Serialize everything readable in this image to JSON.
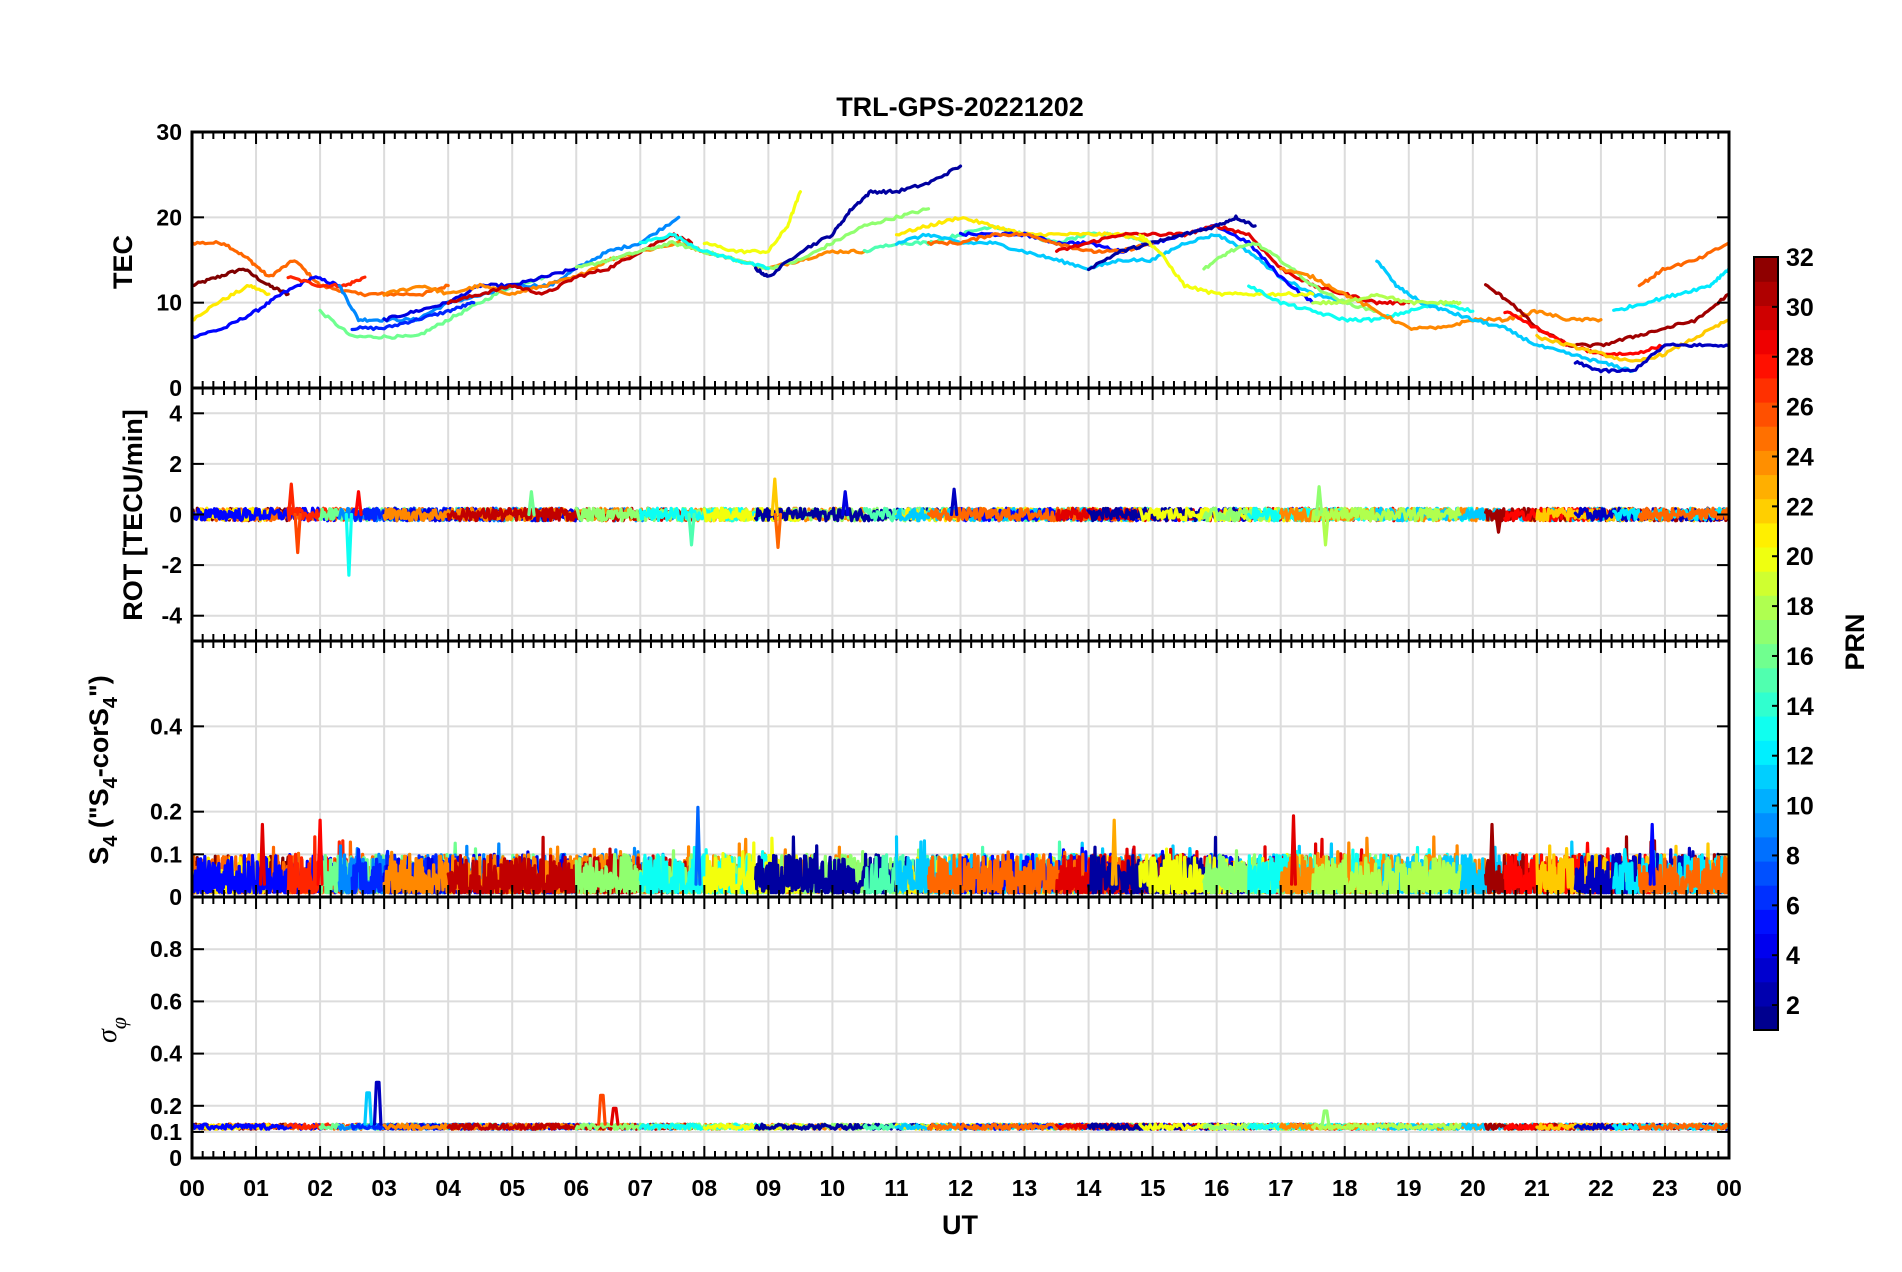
{
  "chart_data": {
    "type": "line",
    "title": "TRL-GPS-20221202",
    "xlabel": "UT",
    "x_range": [
      0,
      24
    ],
    "x_tick_values": [
      0,
      1,
      2,
      3,
      4,
      5,
      6,
      7,
      8,
      9,
      10,
      11,
      12,
      13,
      14,
      15,
      16,
      17,
      18,
      19,
      20,
      21,
      22,
      23,
      24
    ],
    "x_tick_labels": [
      "00",
      "01",
      "02",
      "03",
      "04",
      "05",
      "06",
      "07",
      "08",
      "09",
      "10",
      "11",
      "12",
      "13",
      "14",
      "15",
      "16",
      "17",
      "18",
      "19",
      "20",
      "21",
      "22",
      "23",
      "00"
    ],
    "colorbar": {
      "label": "PRN",
      "colormap": "jet",
      "range": [
        1,
        32
      ],
      "tick_values": [
        2,
        4,
        6,
        8,
        10,
        12,
        14,
        16,
        18,
        20,
        22,
        24,
        26,
        28,
        30,
        32
      ],
      "tick_labels": [
        "2",
        "4",
        "6",
        "8",
        "10",
        "12",
        "14",
        "16",
        "18",
        "20",
        "22",
        "24",
        "26",
        "28",
        "30",
        "32"
      ]
    },
    "panels": [
      {
        "id": "tec",
        "ylabel": "TEC",
        "ylim": [
          0,
          30
        ],
        "y_ticks": [
          0,
          10,
          20,
          30
        ],
        "y_tick_labels": [
          "0",
          "10",
          "20",
          "30"
        ],
        "series": [
          {
            "prn": 32,
            "x": [
              0.0,
              0.4,
              0.8,
              1.2,
              1.5
            ],
            "y": [
              12,
              13,
              14,
              12,
              11
            ]
          },
          {
            "prn": 25,
            "x": [
              0.0,
              0.5,
              0.9,
              1.2,
              1.6,
              2.0,
              2.6,
              3.0,
              3.6,
              4.0
            ],
            "y": [
              17,
              17,
              15,
              13,
              15,
              12,
              11,
              11,
              11,
              12
            ]
          },
          {
            "prn": 21,
            "x": [
              0.0,
              0.4,
              0.9,
              1.2
            ],
            "y": [
              8,
              10,
              12,
              11
            ]
          },
          {
            "prn": 5,
            "x": [
              0.0,
              0.5,
              1.0,
              1.4,
              1.9,
              2.3
            ],
            "y": [
              6,
              7,
              9,
              11,
              13,
              12
            ]
          },
          {
            "prn": 27,
            "x": [
              1.5,
              2.0,
              2.4,
              2.7
            ],
            "y": [
              13,
              12,
              12,
              13
            ]
          },
          {
            "prn": 16,
            "x": [
              2.0,
              2.5,
              3.0,
              3.5,
              4.0,
              4.5,
              5.0,
              5.5
            ],
            "y": [
              9,
              6,
              6,
              6,
              8,
              10,
              12,
              13
            ]
          },
          {
            "prn": 9,
            "x": [
              2.3,
              2.6,
              3.0,
              3.5,
              4.0,
              4.6,
              5.0,
              5.6,
              6.0,
              6.5,
              7.0,
              7.6
            ],
            "y": [
              12,
              8,
              8,
              8,
              10,
              11,
              12,
              12,
              14,
              16,
              17,
              20
            ]
          },
          {
            "prn": 6,
            "x": [
              2.5,
              3.0,
              3.5,
              4.0,
              4.4
            ],
            "y": [
              7,
              7,
              8,
              9,
              10
            ]
          },
          {
            "prn": 4,
            "x": [
              3.0,
              3.5,
              4.0,
              4.5,
              5.0,
              5.5,
              6.0
            ],
            "y": [
              8,
              9,
              10,
              12,
              12,
              13,
              14
            ]
          },
          {
            "prn": 24,
            "x": [
              3.0,
              3.6,
              4.0,
              4.5,
              5.0,
              5.5,
              6.0,
              6.5,
              7.0,
              7.6,
              8.0,
              8.5,
              9.0,
              9.5,
              10.0,
              10.5
            ],
            "y": [
              11,
              12,
              11,
              12,
              11,
              12,
              13,
              15,
              16,
              17,
              16,
              15,
              14,
              15,
              16,
              16
            ]
          },
          {
            "prn": 30,
            "x": [
              4.0,
              4.5,
              5.0,
              5.5,
              6.0,
              6.5,
              7.0,
              7.5,
              7.8
            ],
            "y": [
              10,
              11,
              12,
              11,
              13,
              14,
              16,
              18,
              17
            ]
          },
          {
            "prn": 17,
            "x": [
              6.0,
              6.5,
              7.0,
              7.5,
              8.0,
              8.5,
              9.0,
              9.5,
              10.0,
              10.5,
              11.0,
              11.5
            ],
            "y": [
              14,
              15,
              16,
              17,
              16,
              15,
              14,
              15,
              17,
              19,
              20,
              21
            ]
          },
          {
            "prn": 13,
            "x": [
              7.0,
              7.5,
              8.0,
              8.5,
              9.0
            ],
            "y": [
              17,
              18,
              16,
              15,
              14
            ]
          },
          {
            "prn": 20,
            "x": [
              8.0,
              8.5,
              9.0,
              9.3,
              9.5
            ],
            "y": [
              17,
              16,
              16,
              19,
              23
            ]
          },
          {
            "prn": 2,
            "x": [
              8.8,
              9.0,
              9.5,
              10.0,
              10.3,
              10.6,
              11.0,
              11.5,
              12.0
            ],
            "y": [
              14,
              13,
              16,
              18,
              21,
              23,
              23,
              24,
              26
            ]
          },
          {
            "prn": 15,
            "x": [
              10.5,
              11.0,
              11.5,
              12.0,
              12.5,
              13.0,
              13.5,
              14.0,
              14.5,
              15.0
            ],
            "y": [
              16,
              17,
              17,
              18,
              19,
              18,
              17,
              18,
              18,
              17
            ]
          },
          {
            "prn": 21,
            "x": [
              11.0,
              11.5,
              12.0,
              12.5,
              13.0,
              13.5,
              14.0,
              14.5,
              15.0
            ],
            "y": [
              18,
              19,
              20,
              19,
              18,
              18,
              18,
              18,
              17
            ]
          },
          {
            "prn": 11,
            "x": [
              11.0,
              11.5,
              12.0,
              12.5,
              13.0,
              13.5,
              14.0,
              14.5,
              15.0,
              15.5,
              16.0,
              16.5,
              17.0,
              17.5,
              18.0
            ],
            "y": [
              17,
              18,
              17,
              17,
              16,
              15,
              14,
              15,
              15,
              17,
              18,
              16,
              13,
              11,
              10
            ]
          },
          {
            "prn": 5,
            "x": [
              12.0,
              12.5,
              13.0,
              13.5,
              14.0,
              14.5,
              15.0,
              15.5,
              16.0,
              16.5,
              17.0,
              17.5
            ],
            "y": [
              18,
              18,
              18,
              17,
              17,
              16,
              17,
              18,
              19,
              17,
              13,
              10
            ]
          },
          {
            "prn": 25,
            "x": [
              11.5,
              12.0,
              12.5,
              13.0,
              13.5,
              14.0,
              14.5,
              15.0
            ],
            "y": [
              17,
              17,
              18,
              18,
              17,
              16,
              16,
              17
            ]
          },
          {
            "prn": 29,
            "x": [
              13.5,
              14.0,
              14.5,
              15.0,
              15.5,
              16.0,
              16.5,
              17.0,
              17.5,
              18.0,
              18.5,
              19.0
            ],
            "y": [
              16,
              17,
              18,
              18,
              18,
              19,
              18,
              14,
              12,
              11,
              10,
              10
            ]
          },
          {
            "prn": 2,
            "x": [
              14.0,
              14.5,
              15.0,
              15.5,
              16.0,
              16.3,
              16.6
            ],
            "y": [
              14,
              16,
              17,
              18,
              19,
              20,
              19
            ]
          },
          {
            "prn": 20,
            "x": [
              14.8,
              15.1,
              15.5,
              16.0,
              16.5,
              17.0,
              17.5
            ],
            "y": [
              18,
              16,
              12,
              11,
              11,
              11,
              11
            ]
          },
          {
            "prn": 17,
            "x": [
              15.8,
              16.2,
              16.6,
              17.0,
              17.5,
              18.0,
              18.5
            ],
            "y": [
              14,
              16,
              17,
              15,
              12,
              10,
              9
            ]
          },
          {
            "prn": 13,
            "x": [
              16.5,
              17.0,
              17.5,
              18.0,
              18.5,
              19.0,
              19.5,
              20.0
            ],
            "y": [
              12,
              10,
              9,
              8,
              8,
              9,
              10,
              9
            ]
          },
          {
            "prn": 24,
            "x": [
              17.0,
              17.5,
              18.0,
              18.5,
              19.0,
              19.5,
              20.0,
              20.5,
              21.0,
              21.5,
              22.0
            ],
            "y": [
              14,
              13,
              11,
              9,
              7,
              7,
              8,
              8,
              9,
              8,
              8
            ]
          },
          {
            "prn": 11,
            "x": [
              18.5,
              18.8,
              19.2,
              19.6,
              20.0,
              20.5,
              21.0,
              21.5,
              22.0,
              22.5
            ],
            "y": [
              15,
              12,
              10,
              9,
              8,
              7,
              5,
              4,
              3,
              2
            ]
          },
          {
            "prn": 18,
            "x": [
              17.5,
              18.0,
              18.5,
              19.0,
              19.5,
              19.8
            ],
            "y": [
              10,
              10,
              11,
              10,
              10,
              10
            ]
          },
          {
            "prn": 31,
            "x": [
              20.2,
              20.6,
              21.0,
              21.5,
              22.0,
              22.5,
              23.0,
              23.5,
              24.0
            ],
            "y": [
              12,
              10,
              7,
              5,
              5,
              6,
              7,
              8,
              11
            ]
          },
          {
            "prn": 28,
            "x": [
              20.5,
              21.0,
              21.5,
              22.0,
              22.5,
              23.0
            ],
            "y": [
              9,
              7,
              5,
              4,
              4,
              5
            ]
          },
          {
            "prn": 22,
            "x": [
              21.0,
              21.5,
              22.0,
              22.5,
              23.0,
              23.5,
              24.0
            ],
            "y": [
              6,
              5,
              4,
              3,
              4,
              6,
              8
            ]
          },
          {
            "prn": 3,
            "x": [
              21.6,
              22.0,
              22.5,
              23.0,
              23.5,
              24.0
            ],
            "y": [
              3,
              2,
              2,
              5,
              5,
              5
            ]
          },
          {
            "prn": 12,
            "x": [
              22.2,
              22.7,
              23.2,
              23.7,
              24.0
            ],
            "y": [
              9,
              10,
              11,
              12,
              14
            ]
          },
          {
            "prn": 25,
            "x": [
              22.6,
              23.0,
              23.5,
              24.0
            ],
            "y": [
              12,
              14,
              15,
              17
            ]
          }
        ]
      },
      {
        "id": "rot",
        "ylabel": "ROT [TECU/min]",
        "ylim": [
          -5,
          5
        ],
        "y_ticks": [
          -4,
          -2,
          0,
          2,
          4
        ],
        "y_tick_labels": [
          "-4",
          "-2",
          "0",
          "2",
          "4"
        ],
        "baseline": 0,
        "noise_amplitude": 0.25,
        "series_note": "per-PRN segments fluctuating about 0 TECU/min",
        "spikes": [
          {
            "prn": 27,
            "x": 1.55,
            "y": 1.2
          },
          {
            "prn": 26,
            "x": 1.65,
            "y": -1.5
          },
          {
            "prn": 13,
            "x": 2.45,
            "y": -2.4
          },
          {
            "prn": 28,
            "x": 2.6,
            "y": 0.9
          },
          {
            "prn": 16,
            "x": 5.3,
            "y": 0.9
          },
          {
            "prn": 15,
            "x": 7.8,
            "y": -1.2
          },
          {
            "prn": 22,
            "x": 9.1,
            "y": 1.4
          },
          {
            "prn": 25,
            "x": 9.15,
            "y": -1.3
          },
          {
            "prn": 4,
            "x": 10.2,
            "y": 0.9
          },
          {
            "prn": 3,
            "x": 11.9,
            "y": 1.0
          },
          {
            "prn": 17,
            "x": 17.6,
            "y": 1.1
          },
          {
            "prn": 18,
            "x": 17.7,
            "y": -1.2
          },
          {
            "prn": 31,
            "x": 20.4,
            "y": -0.7
          }
        ]
      },
      {
        "id": "s4",
        "ylabel": "S4 (\"S4-corS4\")",
        "ylabel_main_1": "S",
        "ylabel_sub_1": "4",
        "ylabel_main_2": " (\"S",
        "ylabel_sub_2": "4",
        "ylabel_main_3": "-corS",
        "ylabel_sub_3": "4",
        "ylabel_main_4": "\")",
        "ylim": [
          0,
          0.6
        ],
        "y_ticks": [
          0,
          0.1,
          0.2,
          0.4
        ],
        "y_tick_labels": [
          "0",
          "0.1",
          "0.2",
          "0.4"
        ],
        "typical_level": 0.05,
        "max_level": 0.21,
        "spikes": [
          {
            "prn": 29,
            "x": 1.1,
            "y": 0.17
          },
          {
            "prn": 28,
            "x": 2.0,
            "y": 0.18
          },
          {
            "prn": 8,
            "x": 7.9,
            "y": 0.21
          },
          {
            "prn": 23,
            "x": 14.4,
            "y": 0.18
          },
          {
            "prn": 29,
            "x": 17.2,
            "y": 0.19
          },
          {
            "prn": 31,
            "x": 20.3,
            "y": 0.17
          },
          {
            "prn": 5,
            "x": 22.8,
            "y": 0.17
          }
        ]
      },
      {
        "id": "sigma_phi",
        "ylabel": "σ φ",
        "ylabel_sigma": "σ",
        "ylabel_phi": "φ",
        "ylim": [
          0,
          1.0
        ],
        "y_ticks": [
          0,
          0.1,
          0.2,
          0.4,
          0.6,
          0.8
        ],
        "y_tick_labels": [
          "0",
          "0.1",
          "0.2",
          "0.4",
          "0.6",
          "0.8"
        ],
        "typical_level": 0.12,
        "spikes": [
          {
            "prn": 3,
            "x": 2.9,
            "y": 0.29
          },
          {
            "prn": 11,
            "x": 2.75,
            "y": 0.25
          },
          {
            "prn": 26,
            "x": 6.4,
            "y": 0.24
          },
          {
            "prn": 29,
            "x": 6.6,
            "y": 0.19
          },
          {
            "prn": 17,
            "x": 17.7,
            "y": 0.18
          }
        ]
      }
    ]
  }
}
